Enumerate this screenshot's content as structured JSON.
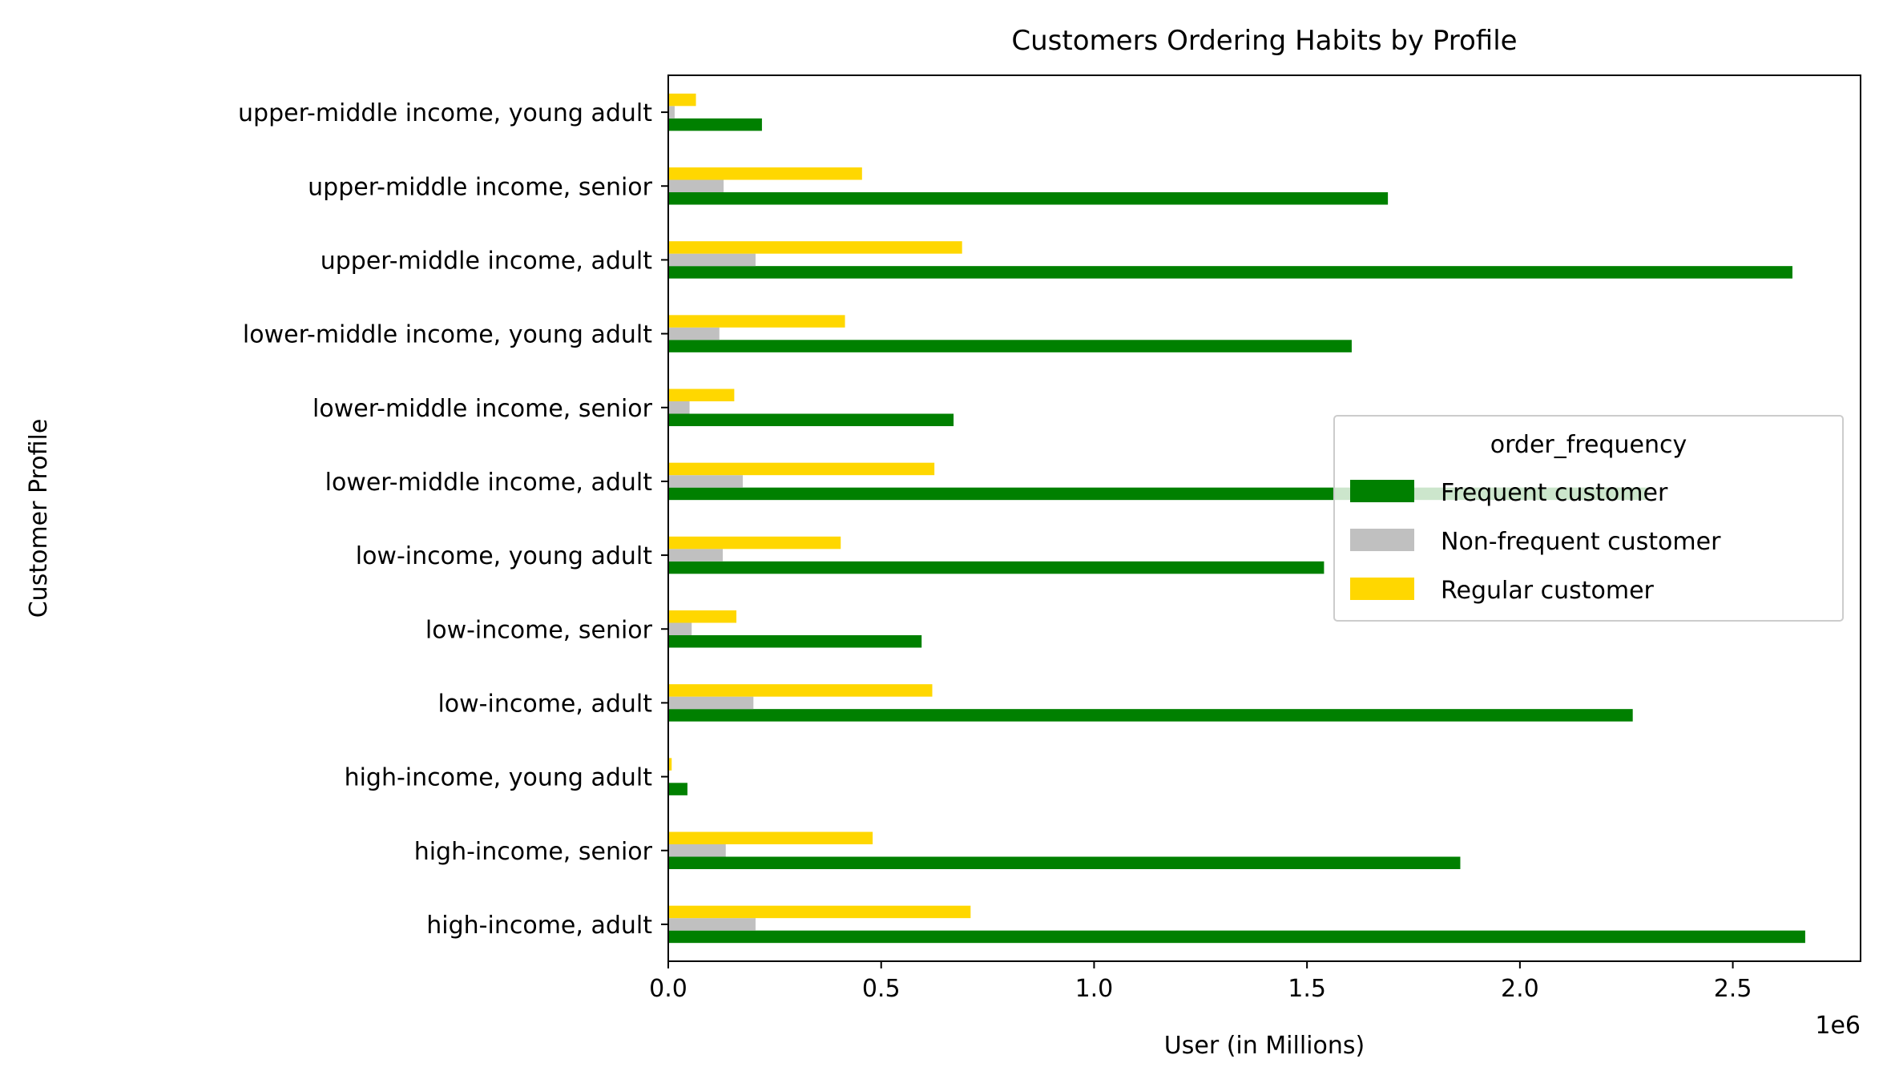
{
  "chart_data": {
    "type": "bar",
    "orientation": "horizontal",
    "title": "Customers Ordering Habits by Profile",
    "xlabel": "User (in Millions)",
    "ylabel": "Customer Profile",
    "x_offset_label": "1e6",
    "xlim": [
      0,
      2800000
    ],
    "xticks": [
      0,
      500000,
      1000000,
      1500000,
      2000000,
      2500000
    ],
    "xtick_labels": [
      "0.0",
      "0.5",
      "1.0",
      "1.5",
      "2.0",
      "2.5"
    ],
    "categories": [
      "high-income, adult",
      "high-income, senior",
      "high-income, young adult",
      "low-income, adult",
      "low-income, senior",
      "low-income, young adult",
      "lower-middle income, adult",
      "lower-middle income, senior",
      "lower-middle income, young adult",
      "upper-middle income, adult",
      "upper-middle income, senior",
      "upper-middle income, young adult"
    ],
    "series": [
      {
        "name": "Frequent customer",
        "color": "#008000",
        "values": [
          2670000,
          1860000,
          45000,
          2265000,
          595000,
          1540000,
          2300000,
          670000,
          1605000,
          2640000,
          1690000,
          220000
        ]
      },
      {
        "name": "Non-frequent customer",
        "color": "#c0c0c0",
        "values": [
          205000,
          135000,
          2000,
          200000,
          55000,
          128000,
          175000,
          50000,
          120000,
          205000,
          130000,
          15000
        ]
      },
      {
        "name": "Regular customer",
        "color": "#ffd700",
        "values": [
          710000,
          480000,
          8000,
          620000,
          160000,
          405000,
          625000,
          155000,
          415000,
          690000,
          455000,
          65000
        ]
      }
    ],
    "legend": {
      "title": "order_frequency",
      "placement": "center-right"
    },
    "grid": false
  }
}
